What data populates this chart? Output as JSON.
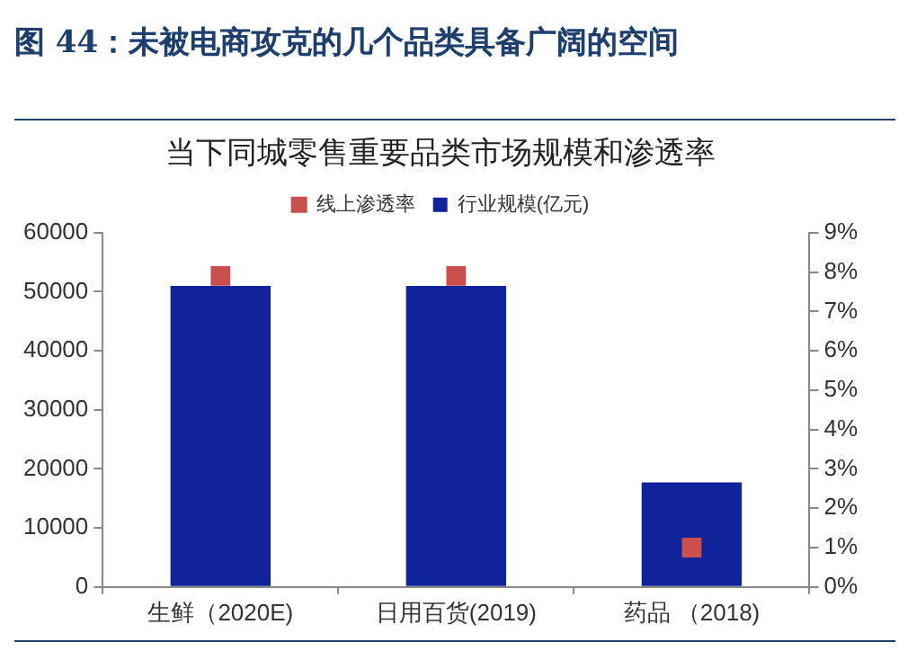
{
  "chart_data": {
    "type": "bar",
    "title": "当下同城零售重要品类市场规模和渗透率",
    "annotations": [
      "图 44：未被电商攻克的几个品类具备广阔的空间"
    ],
    "categories": [
      "生鲜（2020E)",
      "日用百货(2019)",
      "药品 （2018)"
    ],
    "series": [
      {
        "name": "行业规模(亿元)",
        "color": "#10239a",
        "values": [
          51000,
          51000,
          17700
        ]
      },
      {
        "name": "线上渗透率",
        "type": "scatter",
        "axis": "y2",
        "color": "#c9504c",
        "values": [
          7.9,
          7.9,
          1.0
        ]
      }
    ],
    "ylim": [
      0,
      60000
    ],
    "yticks": [
      0,
      10000,
      20000,
      30000,
      40000,
      50000,
      60000
    ],
    "y2lim": [
      0,
      9
    ],
    "y2ticks": [
      {
        "value": 0,
        "label": "0%"
      },
      {
        "value": 1,
        "label": "1%"
      },
      {
        "value": 2,
        "label": "2%"
      },
      {
        "value": 3,
        "label": "3%"
      },
      {
        "value": 4,
        "label": "4%"
      },
      {
        "value": 5,
        "label": "5%"
      },
      {
        "value": 6,
        "label": "6%"
      },
      {
        "value": 7,
        "label": "7%"
      },
      {
        "value": 8,
        "label": "8%"
      },
      {
        "value": 9,
        "label": "9%"
      }
    ],
    "grid": false,
    "legend": "top",
    "marker": "square"
  }
}
